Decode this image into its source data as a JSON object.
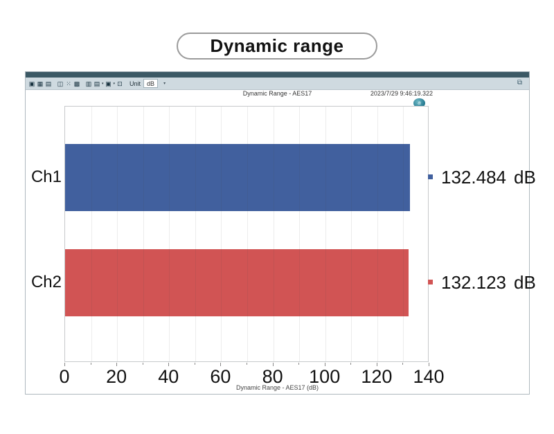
{
  "page_title": "Dynamic range",
  "window": {
    "toolbar": {
      "groups": [
        [
          {
            "glyph": "▣",
            "name": "fit-graph-icon",
            "caret": false
          },
          {
            "glyph": "▦",
            "name": "zoom-x-icon",
            "caret": false
          },
          {
            "glyph": "▤",
            "name": "zoom-y-icon",
            "caret": false
          }
        ],
        [
          {
            "glyph": "◫",
            "name": "select-tool-icon",
            "caret": false
          },
          {
            "glyph": "⁙",
            "name": "data-points-icon",
            "caret": false
          },
          {
            "glyph": "▩",
            "name": "grid-toggle-icon",
            "caret": false
          }
        ],
        [
          {
            "glyph": "▥",
            "name": "data-table-icon",
            "caret": false
          },
          {
            "glyph": "▤",
            "name": "display-mode-icon",
            "caret": true
          },
          {
            "glyph": "▣",
            "name": "trace-style-icon",
            "caret": true
          },
          {
            "glyph": "⊡",
            "name": "graph-settings-icon",
            "caret": false
          }
        ]
      ],
      "unit_label": "Unit",
      "unit_value": "dB",
      "unit_caret": "▾",
      "corner_icon": "⧉"
    },
    "header": {
      "title": "Dynamic Range - AES17",
      "timestamp": "2023/7/29 9:46:19.322",
      "logo_text": "a"
    }
  },
  "chart_data": {
    "type": "bar",
    "orientation": "horizontal",
    "title": "Dynamic Range - AES17",
    "xlabel": "Dynamic Range - AES17 (dB)",
    "unit": "dB",
    "categories": [
      "Ch1",
      "Ch2"
    ],
    "values": [
      132.484,
      132.123
    ],
    "value_display": [
      "132.484",
      "132.123"
    ],
    "series_colors": [
      "#41609e",
      "#d15454"
    ],
    "xlim": [
      0,
      140
    ],
    "x_ticks": [
      0,
      20,
      40,
      60,
      80,
      100,
      120,
      140
    ],
    "minor_grid_step": 10,
    "grid": true,
    "legend_position": "right-of-plot"
  }
}
